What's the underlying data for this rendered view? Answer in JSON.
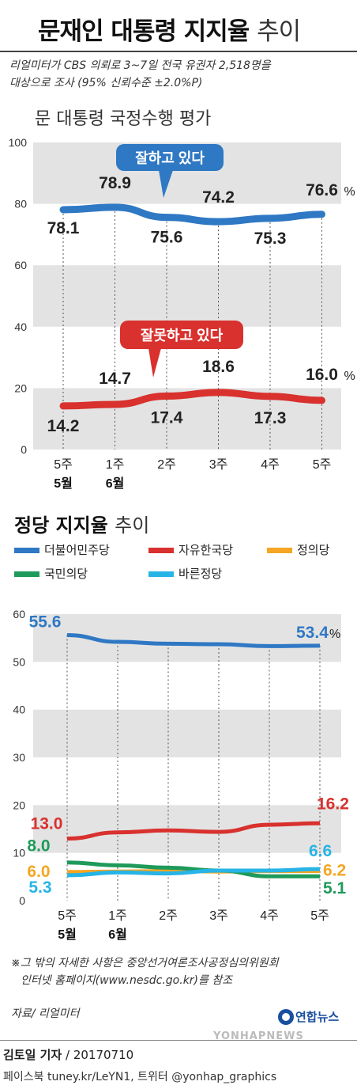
{
  "header": {
    "title_main": "문재인 대통령 지지율",
    "title_sub": "추이",
    "desc_line1": "리얼미터가 CBS 의뢰로 3~7일 전국 유권자 2,518명을",
    "desc_line2": "대상으로 조사 (95% 신뢰수준 ±2.0%P)"
  },
  "chart1_title": "문 대통령 국정수행 평가",
  "chart2_title_bold": "정당 지지율",
  "chart2_title_sub": "추이",
  "callouts": {
    "good": "잘하고 있다",
    "bad": "잘못하고 있다"
  },
  "colors": {
    "blue": "#2f78c4",
    "red": "#d8312e",
    "orange": "#f5a623",
    "green": "#1e9a5a",
    "cyan": "#27b4e6",
    "band": "#e3e3e3"
  },
  "legend": [
    {
      "name": "더불어민주당",
      "color": "#2f78c4"
    },
    {
      "name": "자유한국당",
      "color": "#d8312e"
    },
    {
      "name": "정의당",
      "color": "#f5a623"
    },
    {
      "name": "국민의당",
      "color": "#1e9a5a"
    },
    {
      "name": "바른정당",
      "color": "#27b4e6"
    }
  ],
  "chart_data": [
    {
      "type": "line",
      "title": "문 대통령 국정수행 평가",
      "categories": [
        "5주",
        "1주",
        "2주",
        "3주",
        "4주",
        "5주"
      ],
      "month_labels": [
        "5월",
        "6월",
        "",
        "",
        "",
        ""
      ],
      "ylim": [
        0,
        100
      ],
      "yticks": [
        0,
        20,
        40,
        60,
        80,
        100
      ],
      "unit": "%",
      "grid": true,
      "series": [
        {
          "name": "잘하고 있다",
          "color": "#2f78c4",
          "values": [
            78.1,
            78.9,
            75.6,
            74.2,
            75.3,
            76.6
          ],
          "labels": [
            "78.1",
            "78.9",
            "75.6",
            "74.2",
            "75.3",
            "76.6"
          ]
        },
        {
          "name": "잘못하고 있다",
          "color": "#d8312e",
          "values": [
            14.2,
            14.7,
            17.4,
            18.6,
            17.3,
            16.0
          ],
          "labels": [
            "14.2",
            "14.7",
            "17.4",
            "18.6",
            "17.3",
            "16.0"
          ]
        }
      ]
    },
    {
      "type": "line",
      "title": "정당 지지율 추이",
      "categories": [
        "5주",
        "1주",
        "2주",
        "3주",
        "4주",
        "5주"
      ],
      "month_labels": [
        "5월",
        "6월",
        "",
        "",
        "",
        ""
      ],
      "ylim": [
        0,
        60
      ],
      "yticks": [
        0,
        10,
        20,
        30,
        40,
        50,
        60
      ],
      "unit": "%",
      "grid": true,
      "series": [
        {
          "name": "더불어민주당",
          "color": "#2f78c4",
          "values": [
            55.6,
            54.2,
            53.8,
            53.7,
            53.3,
            53.4
          ],
          "labels": [
            "55.6",
            "",
            "",
            "",
            "",
            "53.4"
          ]
        },
        {
          "name": "자유한국당",
          "color": "#d8312e",
          "values": [
            13.0,
            14.3,
            14.7,
            14.4,
            15.9,
            16.2
          ],
          "labels": [
            "13.0",
            "",
            "",
            "",
            "",
            "16.2"
          ]
        },
        {
          "name": "정의당",
          "color": "#f5a623",
          "values": [
            6.0,
            6.1,
            6.2,
            6.1,
            6.2,
            6.2
          ],
          "labels": [
            "6.0",
            "",
            "",
            "",
            "",
            "6.2"
          ]
        },
        {
          "name": "국민의당",
          "color": "#1e9a5a",
          "values": [
            8.0,
            7.4,
            6.9,
            6.3,
            5.1,
            5.1
          ],
          "labels": [
            "8.0",
            "",
            "",
            "",
            "",
            "5.1"
          ]
        },
        {
          "name": "바른정당",
          "color": "#27b4e6",
          "values": [
            5.3,
            5.9,
            5.7,
            6.3,
            6.3,
            6.6
          ],
          "labels": [
            "5.3",
            "",
            "",
            "",
            "",
            "6.6"
          ]
        }
      ]
    }
  ],
  "footnote_line1": "※그 밖의 자세한 사항은 중앙선거여론조사공정심의위원회",
  "footnote_line2": "인터넷 홈페이지(www.nesdc.go.kr)를 참조",
  "source": "자료/ 리얼미터",
  "logo_text": "연합뉴스",
  "reporter_name": "김토일 기자",
  "reporter_date": " / 20170710",
  "social": "페이스북 tuney.kr/LeYN1, 트위터 @yonhap_graphics",
  "watermark": "YONHAPNEWS"
}
